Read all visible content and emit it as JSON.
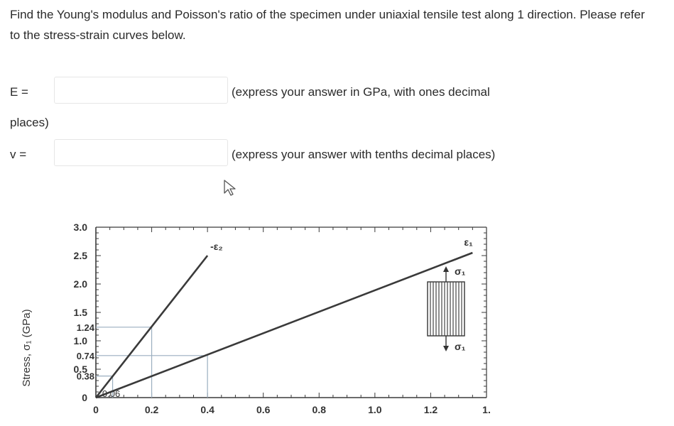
{
  "question": {
    "text": "Find the Young's modulus and Poisson's ratio of the specimen under uniaxial tensile test along 1 direction. Please refer to the stress-strain curves below."
  },
  "answer_e": {
    "label": "E =",
    "value": "",
    "hint": "(express your answer in GPa, with ones decimal",
    "hint_cont": "places)"
  },
  "answer_nu": {
    "label": "v =",
    "value": "",
    "hint": "(express your answer with tenths decimal places)"
  },
  "icons": {
    "cursor": "mouse-pointer-icon",
    "specimen": "specimen-diagram-icon"
  },
  "chart_data": {
    "type": "line",
    "ylabel": "Stress, σ₁ (GPa)",
    "xlabel": "",
    "xlim": [
      0,
      1.4
    ],
    "ylim": [
      0,
      3.0
    ],
    "x_ticks": [
      "0",
      "0.2",
      "0.4",
      "0.6",
      "0.8",
      "1.0",
      "1.2",
      "1."
    ],
    "y_ticks": [
      "0",
      "0.5",
      "1.0",
      "1.5",
      "2.0",
      "2.5",
      "3.0"
    ],
    "y_annotations": [
      "1.24",
      "0.74",
      "0.38"
    ],
    "x_annotations": [
      "0.06"
    ],
    "series": [
      {
        "name": "-ε₂",
        "x": [
          0,
          0.4
        ],
        "y": [
          0,
          2.5
        ]
      },
      {
        "name": "ε₁",
        "x": [
          0,
          1.35
        ],
        "y": [
          0,
          2.55
        ]
      }
    ],
    "guides": [
      {
        "x": 0.2,
        "y": 1.24
      },
      {
        "x": 0.4,
        "y": 0.74
      },
      {
        "x": 0.06,
        "y": 0.38
      }
    ],
    "specimen": {
      "top_label": "σ₁",
      "bottom_label": "σ₁"
    },
    "grid": false,
    "colors": {
      "line": "#3a3a3a",
      "guide": "#9aaebf"
    }
  }
}
